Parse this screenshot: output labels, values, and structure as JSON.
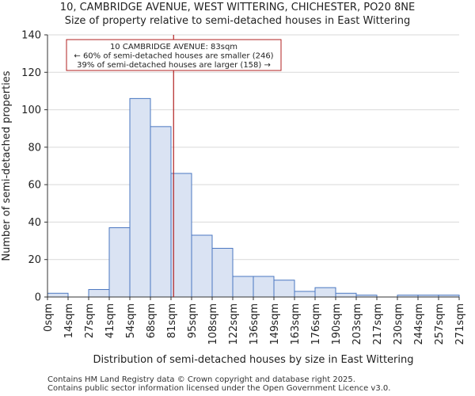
{
  "title": "10, CAMBRIDGE AVENUE, WEST WITTERING, CHICHESTER, PO20 8NE",
  "subtitle": "Size of property relative to semi-detached houses in East Wittering",
  "footer": [
    "Contains HM Land Registry data © Crown copyright and database right 2025.",
    "Contains public sector information licensed under the Open Government Licence v3.0."
  ],
  "colors": {
    "bar_fill": "#dae3f3",
    "bar_edge": "#4a77c1",
    "marker": "#b22222",
    "axis": "#333333",
    "grid": "#d9d9d9"
  },
  "chart_data": {
    "type": "bar",
    "xlabel": "Distribution of semi-detached houses by size in East Wittering",
    "ylabel": "Number of semi-detached properties",
    "ylim": [
      0,
      140
    ],
    "yticks": [
      0,
      20,
      40,
      60,
      80,
      100,
      120,
      140
    ],
    "grid": true,
    "bin_edges_sqm": [
      0,
      13.55,
      27.1,
      40.65,
      54.2,
      67.75,
      81.3,
      94.85,
      108.4,
      121.95,
      135.5,
      149.05,
      162.6,
      176.15,
      189.7,
      203.25,
      216.8,
      230.35,
      243.9,
      257.45,
      271
    ],
    "tick_labels": [
      "0sqm",
      "14sqm",
      "27sqm",
      "41sqm",
      "54sqm",
      "68sqm",
      "81sqm",
      "95sqm",
      "108sqm",
      "122sqm",
      "136sqm",
      "149sqm",
      "163sqm",
      "176sqm",
      "190sqm",
      "203sqm",
      "217sqm",
      "230sqm",
      "244sqm",
      "257sqm",
      "271sqm"
    ],
    "values": [
      2,
      0,
      4,
      37,
      106,
      91,
      66,
      33,
      26,
      11,
      11,
      9,
      3,
      5,
      2,
      1,
      0,
      1,
      1,
      1
    ],
    "marker": {
      "value_sqm": 83,
      "annotation": [
        "10 CAMBRIDGE AVENUE: 83sqm",
        "← 60% of semi-detached houses are smaller (246)",
        "39% of semi-detached houses are larger (158) →"
      ]
    }
  }
}
